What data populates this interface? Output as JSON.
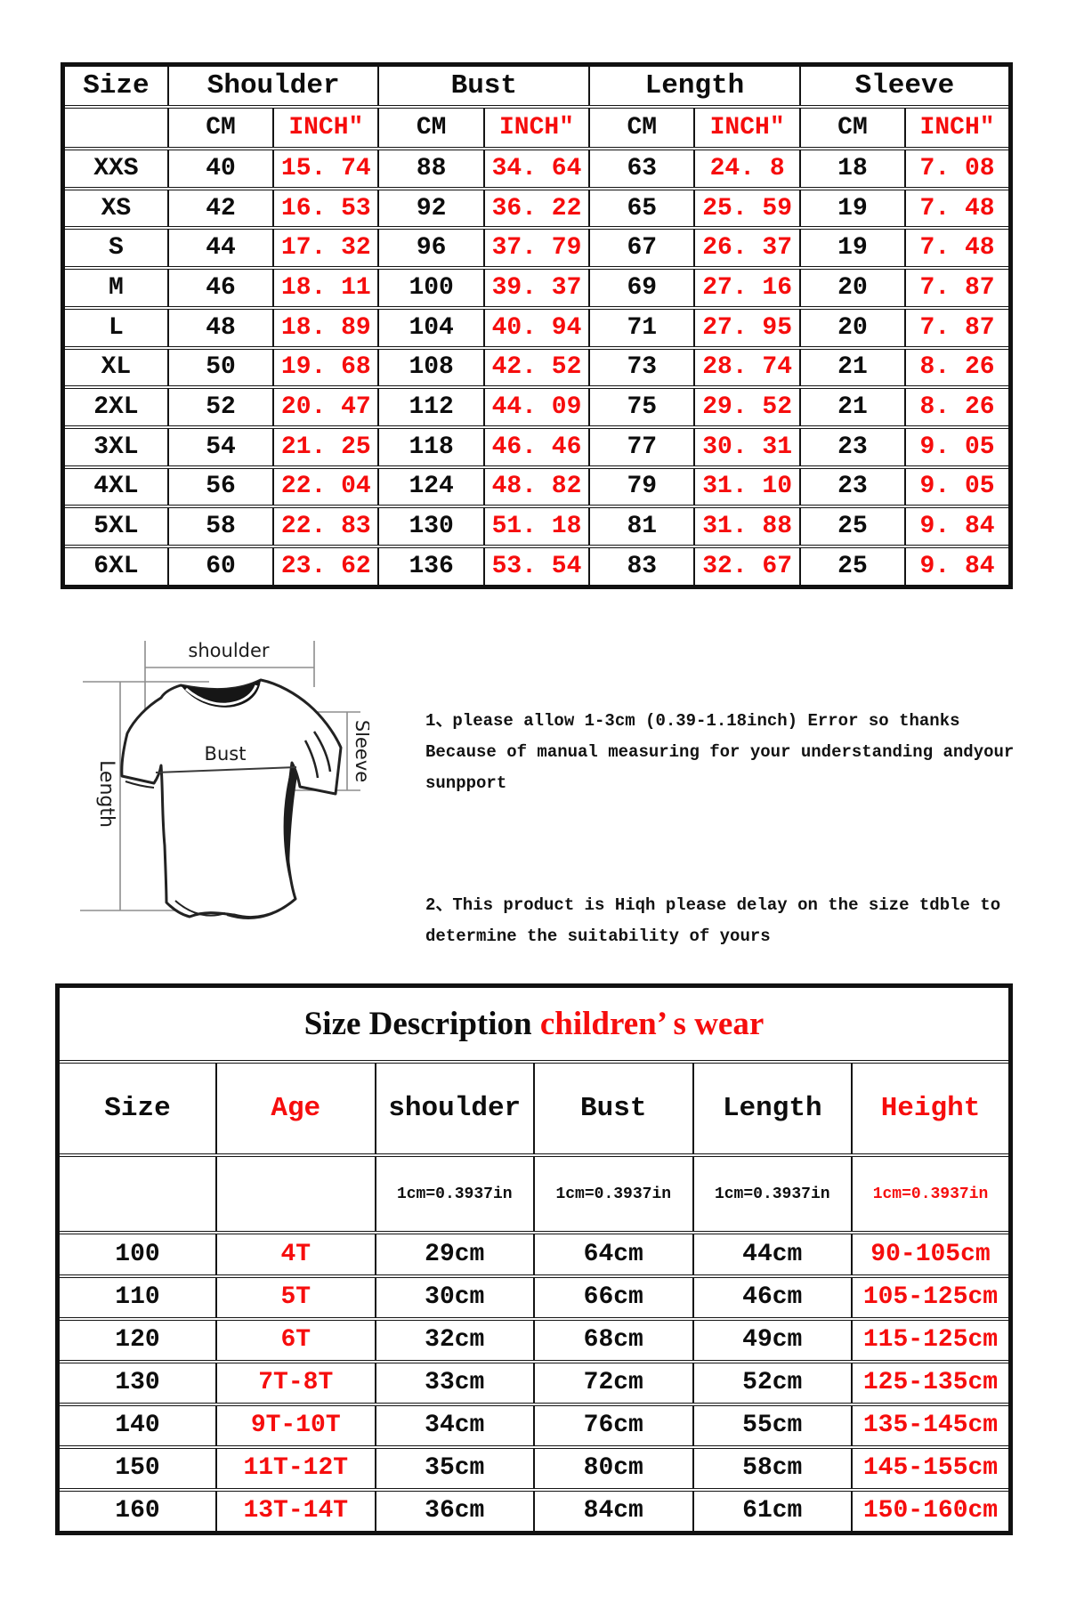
{
  "colors": {
    "red": "#f60d0d",
    "black": "#0d0d0d",
    "border": "#141414",
    "measure_line": "#8d8d8d"
  },
  "adult_size_table": {
    "header_groups": [
      {
        "label": "Size",
        "span": 1
      },
      {
        "label": "Shoulder",
        "span": 2
      },
      {
        "label": "Bust",
        "span": 2
      },
      {
        "label": "Length",
        "span": 2
      },
      {
        "label": "Sleeve",
        "span": 2
      }
    ],
    "unit_row": [
      "",
      "CM",
      "INCH″",
      "CM",
      "INCH″",
      "CM",
      "INCH″",
      "CM",
      "INCH″"
    ],
    "rows": [
      [
        "XXS",
        "40",
        "15. 74",
        "88",
        "34. 64",
        "63",
        "24. 8",
        "18",
        "7. 08"
      ],
      [
        "XS",
        "42",
        "16. 53",
        "92",
        "36. 22",
        "65",
        "25. 59",
        "19",
        "7. 48"
      ],
      [
        "S",
        "44",
        "17. 32",
        "96",
        "37. 79",
        "67",
        "26. 37",
        "19",
        "7. 48"
      ],
      [
        "M",
        "46",
        "18. 11",
        "100",
        "39. 37",
        "69",
        "27. 16",
        "20",
        "7. 87"
      ],
      [
        "L",
        "48",
        "18. 89",
        "104",
        "40. 94",
        "71",
        "27. 95",
        "20",
        "7. 87"
      ],
      [
        "XL",
        "50",
        "19. 68",
        "108",
        "42. 52",
        "73",
        "28. 74",
        "21",
        "8. 26"
      ],
      [
        "2XL",
        "52",
        "20. 47",
        "112",
        "44. 09",
        "75",
        "29. 52",
        "21",
        "8. 26"
      ],
      [
        "3XL",
        "54",
        "21. 25",
        "118",
        "46. 46",
        "77",
        "30. 31",
        "23",
        "9. 05"
      ],
      [
        "4XL",
        "56",
        "22. 04",
        "124",
        "48. 82",
        "79",
        "31. 10",
        "23",
        "9. 05"
      ],
      [
        "5XL",
        "58",
        "22. 83",
        "130",
        "51. 18",
        "81",
        "31. 88",
        "25",
        "9. 84"
      ],
      [
        "6XL",
        "60",
        "23. 62",
        "136",
        "53. 54",
        "83",
        "32. 67",
        "25",
        "9. 84"
      ]
    ]
  },
  "diagram_labels": {
    "shoulder": "shoulder",
    "length": "Length",
    "bust": "Bust",
    "sleeve": "Sleeve"
  },
  "notes": [
    [
      "1、please allow 1-3cm (0.39-1.18inch) Error so thanks",
      "Because of manual measuring for your understanding andyour",
      "sunpport"
    ],
    [
      "2、This product is Hiqh please delay on the size tdble to",
      "determine the suitability of yours"
    ]
  ],
  "children_size_table": {
    "title": {
      "black": "Size Description",
      "red": "children’ s wear"
    },
    "headers": [
      {
        "label": "Size",
        "red": false
      },
      {
        "label": "Age",
        "red": true
      },
      {
        "label": "shoulder",
        "red": false
      },
      {
        "label": "Bust",
        "red": false
      },
      {
        "label": "Length",
        "red": false
      },
      {
        "label": "Height",
        "red": true
      }
    ],
    "conversion_row": [
      "",
      "",
      "1cm=0.3937in",
      "1cm=0.3937in",
      "1cm=0.3937in",
      "1cm=0.3937in"
    ],
    "rows": [
      [
        "100",
        "4T",
        "29cm",
        "64cm",
        "44cm",
        "90-105cm"
      ],
      [
        "110",
        "5T",
        "30cm",
        "66cm",
        "46cm",
        "105-125cm"
      ],
      [
        "120",
        "6T",
        "32cm",
        "68cm",
        "49cm",
        "115-125cm"
      ],
      [
        "130",
        "7T-8T",
        "33cm",
        "72cm",
        "52cm",
        "125-135cm"
      ],
      [
        "140",
        "9T-10T",
        "34cm",
        "76cm",
        "55cm",
        "135-145cm"
      ],
      [
        "150",
        "11T-12T",
        "35cm",
        "80cm",
        "58cm",
        "145-155cm"
      ],
      [
        "160",
        "13T-14T",
        "36cm",
        "84cm",
        "61cm",
        "150-160cm"
      ]
    ]
  }
}
